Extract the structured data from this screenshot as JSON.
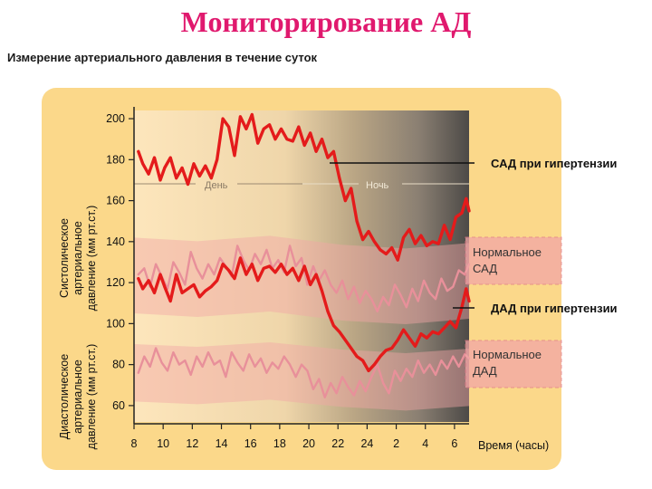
{
  "title": "Мониторирование АД",
  "subtitle": "Измерение артериального давления в течение суток",
  "chart_data": {
    "type": "line",
    "x_tick_labels": [
      "8",
      "10",
      "12",
      "14",
      "16",
      "18",
      "20",
      "22",
      "24",
      "2",
      "4",
      "6"
    ],
    "x_hours": [
      8,
      10,
      12,
      14,
      16,
      18,
      20,
      22,
      24,
      26,
      28,
      30
    ],
    "xlabel": "Время (часы)",
    "y_ticks": [
      60,
      80,
      100,
      120,
      140,
      160,
      180,
      200
    ],
    "ylim": [
      52,
      204
    ],
    "ylabel_systolic": "Систолическое артериальное давление (мм рт.ст.)",
    "ylabel_diastolic": "Диастолическое артериальное давление (мм рт.ст.)",
    "periods": {
      "day": "День",
      "night": "Ночь"
    },
    "series": [
      {
        "name": "САД при гипертензии",
        "color": "#e41b1b",
        "x": [
          8.3,
          8.6,
          9.0,
          9.4,
          9.8,
          10.1,
          10.5,
          10.9,
          11.3,
          11.7,
          12.1,
          12.5,
          12.9,
          13.3,
          13.7,
          14.1,
          14.5,
          14.9,
          15.3,
          15.7,
          16.1,
          16.5,
          16.9,
          17.3,
          17.7,
          18.1,
          18.5,
          18.9,
          19.3,
          19.7,
          20.1,
          20.5,
          20.9,
          21.3,
          21.7,
          22.1,
          22.5,
          22.9,
          23.3,
          23.7,
          24.1,
          24.5,
          24.9,
          25.3,
          25.7,
          26.1,
          26.5,
          26.9,
          27.3,
          27.7,
          28.1,
          28.5,
          28.9,
          29.3,
          29.7,
          30.1,
          30.5,
          30.8,
          31.0
        ],
        "y": [
          184,
          178,
          173,
          181,
          170,
          176,
          181,
          171,
          176,
          168,
          178,
          172,
          177,
          171,
          180,
          200,
          196,
          182,
          201,
          195,
          202,
          188,
          195,
          197,
          190,
          195,
          190,
          189,
          196,
          187,
          193,
          184,
          190,
          181,
          184,
          171,
          160,
          166,
          150,
          141,
          145,
          140,
          136,
          134,
          137,
          131,
          142,
          146,
          139,
          143,
          138,
          140,
          139,
          148,
          141,
          152,
          154,
          161,
          155
        ]
      },
      {
        "name": "ДАД при гипертензии",
        "color": "#e41b1b",
        "x": [
          8.3,
          8.6,
          9.0,
          9.4,
          9.8,
          10.1,
          10.5,
          10.9,
          11.3,
          11.7,
          12.1,
          12.5,
          12.9,
          13.3,
          13.7,
          14.1,
          14.5,
          14.9,
          15.3,
          15.7,
          16.1,
          16.5,
          16.9,
          17.3,
          17.7,
          18.1,
          18.5,
          18.9,
          19.3,
          19.7,
          20.1,
          20.5,
          20.9,
          21.3,
          21.7,
          22.1,
          22.5,
          22.9,
          23.3,
          23.7,
          24.1,
          24.5,
          24.9,
          25.3,
          25.7,
          26.1,
          26.5,
          26.9,
          27.3,
          27.7,
          28.1,
          28.5,
          28.9,
          29.3,
          29.7,
          30.1,
          30.5,
          30.8,
          31.0
        ],
        "y": [
          122,
          117,
          121,
          115,
          124,
          118,
          111,
          124,
          115,
          117,
          119,
          113,
          116,
          118,
          121,
          129,
          126,
          122,
          132,
          124,
          129,
          121,
          127,
          128,
          125,
          129,
          124,
          127,
          121,
          128,
          119,
          124,
          116,
          106,
          99,
          96,
          92,
          88,
          84,
          82,
          77,
          80,
          84,
          87,
          88,
          92,
          97,
          93,
          89,
          95,
          93,
          96,
          95,
          98,
          101,
          98,
          108,
          117,
          111
        ]
      },
      {
        "name": "Нормальное САД",
        "color": "#e8909a",
        "x": [
          8.3,
          8.7,
          9.1,
          9.5,
          9.9,
          10.3,
          10.7,
          11.1,
          11.5,
          11.9,
          12.3,
          12.7,
          13.1,
          13.5,
          13.9,
          14.3,
          14.7,
          15.1,
          15.5,
          15.9,
          16.3,
          16.7,
          17.1,
          17.5,
          17.9,
          18.3,
          18.7,
          19.1,
          19.5,
          19.9,
          20.3,
          20.7,
          21.1,
          21.5,
          21.9,
          22.3,
          22.7,
          23.1,
          23.5,
          23.9,
          24.3,
          24.7,
          25.1,
          25.5,
          25.9,
          26.3,
          26.7,
          27.1,
          27.5,
          27.9,
          28.3,
          28.7,
          29.1,
          29.5,
          29.9,
          30.3,
          30.7,
          31.0
        ],
        "y": [
          124,
          127,
          118,
          129,
          123,
          117,
          130,
          125,
          119,
          135,
          127,
          122,
          129,
          124,
          132,
          128,
          123,
          138,
          131,
          126,
          134,
          129,
          136,
          127,
          131,
          125,
          138,
          128,
          132,
          119,
          128,
          121,
          126,
          119,
          115,
          121,
          112,
          118,
          110,
          116,
          112,
          106,
          113,
          109,
          119,
          114,
          108,
          117,
          111,
          121,
          115,
          112,
          122,
          116,
          118,
          126,
          124,
          129
        ]
      },
      {
        "name": "Нормальное ДАД",
        "color": "#e8909a",
        "x": [
          8.3,
          8.7,
          9.1,
          9.5,
          9.9,
          10.3,
          10.7,
          11.1,
          11.5,
          11.9,
          12.3,
          12.7,
          13.1,
          13.5,
          13.9,
          14.3,
          14.7,
          15.1,
          15.5,
          15.9,
          16.3,
          16.7,
          17.1,
          17.5,
          17.9,
          18.3,
          18.7,
          19.1,
          19.5,
          19.9,
          20.3,
          20.7,
          21.1,
          21.5,
          21.9,
          22.3,
          22.7,
          23.1,
          23.5,
          23.9,
          24.3,
          24.7,
          25.1,
          25.5,
          25.9,
          26.3,
          26.7,
          27.1,
          27.5,
          27.9,
          28.3,
          28.7,
          29.1,
          29.5,
          29.9,
          30.3,
          30.7,
          31.0
        ],
        "y": [
          76,
          84,
          79,
          88,
          81,
          77,
          86,
          80,
          82,
          75,
          84,
          79,
          86,
          80,
          82,
          74,
          86,
          81,
          77,
          85,
          79,
          83,
          76,
          81,
          78,
          84,
          80,
          74,
          80,
          77,
          68,
          73,
          64,
          71,
          66,
          74,
          69,
          65,
          72,
          67,
          74,
          80,
          71,
          66,
          77,
          72,
          78,
          74,
          82,
          76,
          80,
          75,
          82,
          78,
          84,
          79,
          85,
          83
        ]
      }
    ],
    "bands": [
      {
        "name": "Нормальное САД",
        "upper": 142,
        "lower": 105
      },
      {
        "name": "Нормальное ДАД",
        "upper": 90,
        "lower": 62
      }
    ],
    "annotations": {
      "sbp_hyper": "САД при гипертензии",
      "dbp_hyper": "ДАД при гипертензии",
      "sbp_normal_1": "Нормальное",
      "sbp_normal_2": "САД",
      "dbp_normal_1": "Нормальное",
      "dbp_normal_2": "ДАД"
    },
    "colors": {
      "panel": "#fbd88a",
      "hyper_line": "#e41b1b",
      "normal_line": "#e8909a",
      "band": "#f2a6a6"
    }
  }
}
